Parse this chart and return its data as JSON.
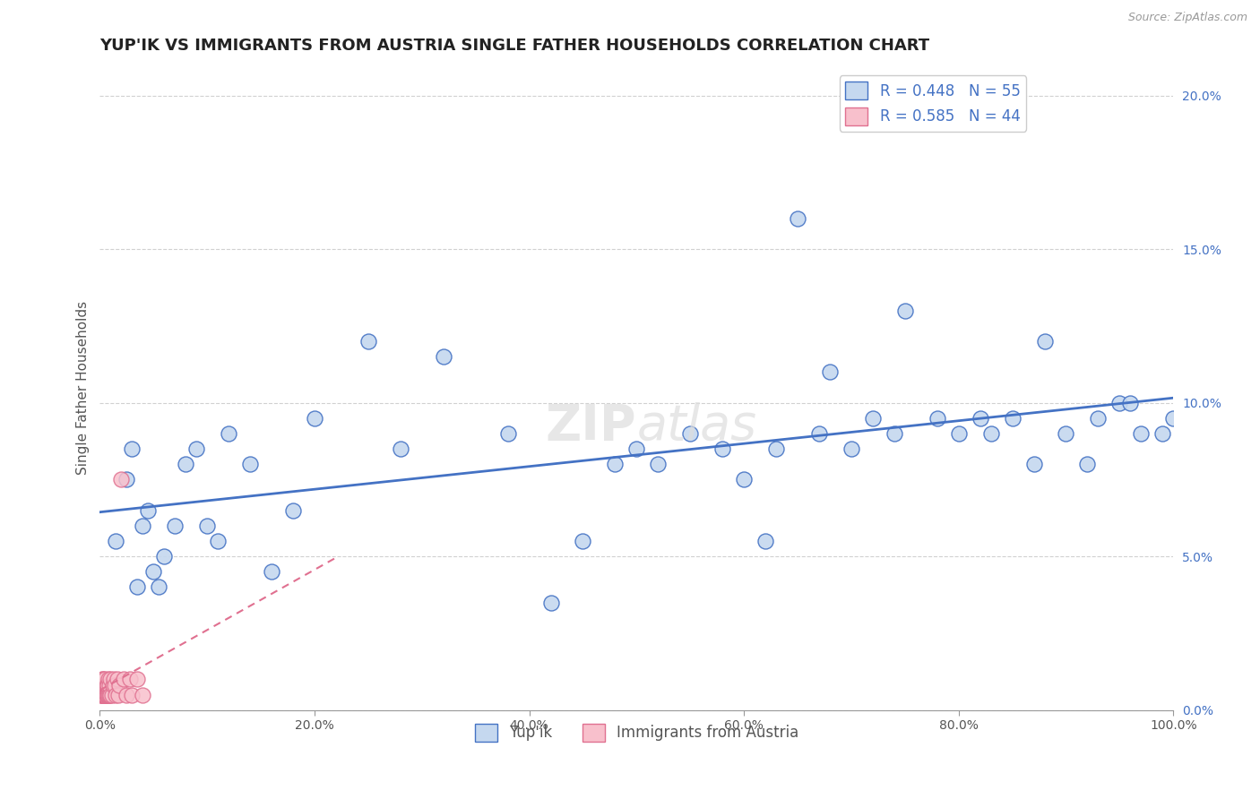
{
  "title": "YUP'IK VS IMMIGRANTS FROM AUSTRIA SINGLE FATHER HOUSEHOLDS CORRELATION CHART",
  "source": "Source: ZipAtlas.com",
  "ylabel": "Single Father Households",
  "series1_name": "Yup'ik",
  "series2_name": "Immigrants from Austria",
  "series1_R": 0.448,
  "series1_N": 55,
  "series2_R": 0.585,
  "series2_N": 44,
  "series1_color": "#c5d8ef",
  "series2_color": "#f8c0cc",
  "series1_line_color": "#4472c4",
  "series2_line_color": "#e07090",
  "background_color": "#ffffff",
  "xlim": [
    0.0,
    1.0
  ],
  "ylim": [
    0.0,
    0.21
  ],
  "title_fontsize": 13,
  "axis_label_fontsize": 11,
  "tick_fontsize": 10,
  "legend_fontsize": 12,
  "watermark_fontsize": 40,
  "series1_x": [
    0.015,
    0.025,
    0.03,
    0.035,
    0.04,
    0.045,
    0.05,
    0.055,
    0.06,
    0.07,
    0.08,
    0.09,
    0.1,
    0.11,
    0.12,
    0.14,
    0.16,
    0.18,
    0.2,
    0.25,
    0.28,
    0.32,
    0.38,
    0.42,
    0.45,
    0.48,
    0.5,
    0.52,
    0.55,
    0.58,
    0.6,
    0.62,
    0.63,
    0.65,
    0.67,
    0.68,
    0.7,
    0.72,
    0.74,
    0.75,
    0.78,
    0.8,
    0.82,
    0.83,
    0.85,
    0.87,
    0.88,
    0.9,
    0.92,
    0.93,
    0.95,
    0.96,
    0.97,
    0.99,
    1.0
  ],
  "series1_y": [
    0.055,
    0.075,
    0.085,
    0.04,
    0.06,
    0.065,
    0.045,
    0.04,
    0.05,
    0.06,
    0.08,
    0.085,
    0.06,
    0.055,
    0.09,
    0.08,
    0.045,
    0.065,
    0.095,
    0.12,
    0.085,
    0.115,
    0.09,
    0.035,
    0.055,
    0.08,
    0.085,
    0.08,
    0.09,
    0.085,
    0.075,
    0.055,
    0.085,
    0.16,
    0.09,
    0.11,
    0.085,
    0.095,
    0.09,
    0.13,
    0.095,
    0.09,
    0.095,
    0.09,
    0.095,
    0.08,
    0.12,
    0.09,
    0.08,
    0.095,
    0.1,
    0.1,
    0.09,
    0.09,
    0.095
  ],
  "series2_x": [
    0.001,
    0.001,
    0.001,
    0.002,
    0.002,
    0.002,
    0.002,
    0.003,
    0.003,
    0.003,
    0.003,
    0.004,
    0.004,
    0.004,
    0.005,
    0.005,
    0.005,
    0.005,
    0.006,
    0.006,
    0.006,
    0.007,
    0.007,
    0.008,
    0.008,
    0.009,
    0.009,
    0.01,
    0.01,
    0.011,
    0.012,
    0.013,
    0.014,
    0.015,
    0.016,
    0.017,
    0.018,
    0.02,
    0.022,
    0.025,
    0.028,
    0.03,
    0.035,
    0.04
  ],
  "series2_y": [
    0.005,
    0.005,
    0.008,
    0.005,
    0.005,
    0.008,
    0.01,
    0.005,
    0.005,
    0.008,
    0.01,
    0.005,
    0.005,
    0.008,
    0.005,
    0.005,
    0.008,
    0.01,
    0.005,
    0.005,
    0.008,
    0.005,
    0.008,
    0.005,
    0.01,
    0.005,
    0.008,
    0.005,
    0.01,
    0.005,
    0.008,
    0.01,
    0.008,
    0.005,
    0.01,
    0.005,
    0.008,
    0.075,
    0.01,
    0.005,
    0.01,
    0.005,
    0.01,
    0.005
  ]
}
